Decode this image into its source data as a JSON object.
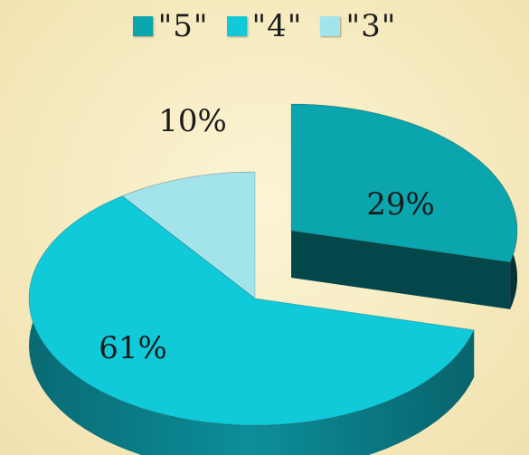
{
  "colors": {
    "5": {
      "top": "#0aa5ad",
      "side": "#04474b"
    },
    "4": {
      "top": "#10c9d9",
      "side": "#0c8e9a"
    },
    "3": {
      "top": "#a3e4ea",
      "side": "#3d5e60"
    }
  },
  "chart_data": {
    "type": "pie",
    "title": "",
    "legend_position": "top",
    "slices": [
      {
        "key": "5",
        "label": "\"5\"",
        "value": 29,
        "display": "29%"
      },
      {
        "key": "4",
        "label": "\"4\"",
        "value": 61,
        "display": "61%"
      },
      {
        "key": "3",
        "label": "\"3\"",
        "value": 10,
        "display": "10%"
      }
    ]
  }
}
